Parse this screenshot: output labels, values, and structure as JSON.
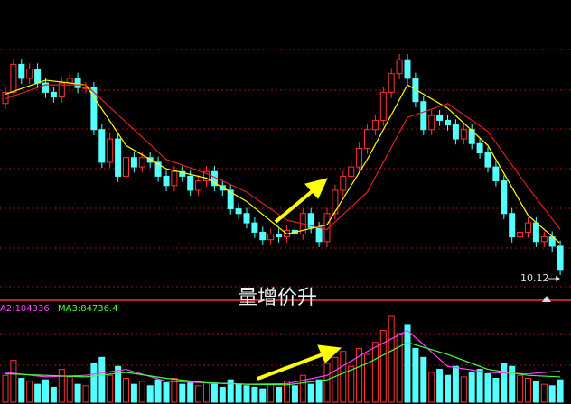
{
  "chart_data": {
    "type": "candlestick",
    "open": [
      11.9,
      12.02,
      12.32,
      12.17,
      12.27,
      12.12,
      12.02,
      11.97,
      12.12,
      12.17,
      12.07,
      12.07,
      11.62,
      11.27,
      11.52,
      11.12,
      11.32,
      11.22,
      11.32,
      11.27,
      11.12,
      11.02,
      11.17,
      11.12,
      10.97,
      11.07,
      11.17,
      11.02,
      10.97,
      10.77,
      10.72,
      10.62,
      10.52,
      10.44,
      10.5,
      10.47,
      10.54,
      10.5,
      10.72,
      10.57,
      10.42,
      10.72,
      10.97,
      11.12,
      11.22,
      11.42,
      11.62,
      11.72,
      12.02,
      12.22,
      12.37,
      12.17,
      11.92,
      11.62,
      11.77,
      11.72,
      11.67,
      11.52,
      11.62,
      11.47,
      11.37,
      11.22,
      11.07,
      10.72,
      10.47,
      10.52,
      10.62,
      10.42,
      10.47,
      10.37
    ],
    "close": [
      12.02,
      12.32,
      12.17,
      12.27,
      12.12,
      12.02,
      11.97,
      12.12,
      12.17,
      12.07,
      12.07,
      11.62,
      11.27,
      11.52,
      11.12,
      11.32,
      11.22,
      11.32,
      11.27,
      11.12,
      11.02,
      11.17,
      11.12,
      10.97,
      11.07,
      11.17,
      11.02,
      10.97,
      10.77,
      10.72,
      10.62,
      10.52,
      10.44,
      10.5,
      10.47,
      10.54,
      10.5,
      10.72,
      10.57,
      10.42,
      10.72,
      10.97,
      11.12,
      11.22,
      11.42,
      11.62,
      11.72,
      12.02,
      12.22,
      12.37,
      12.17,
      11.92,
      11.62,
      11.77,
      11.72,
      11.67,
      11.52,
      11.62,
      11.47,
      11.37,
      11.22,
      11.07,
      10.72,
      10.47,
      10.52,
      10.62,
      10.42,
      10.47,
      10.37,
      10.12
    ],
    "high": [
      12.08,
      12.38,
      12.38,
      12.33,
      12.33,
      12.18,
      12.08,
      12.18,
      12.23,
      12.23,
      12.13,
      12.13,
      11.68,
      11.58,
      11.58,
      11.38,
      11.38,
      11.38,
      11.38,
      11.33,
      11.18,
      11.23,
      11.23,
      11.18,
      11.13,
      11.23,
      11.23,
      11.08,
      11.03,
      10.83,
      10.78,
      10.68,
      10.58,
      10.56,
      10.56,
      10.6,
      10.6,
      10.78,
      10.78,
      10.63,
      10.78,
      11.03,
      11.18,
      11.28,
      11.48,
      11.68,
      11.78,
      12.08,
      12.28,
      12.43,
      12.43,
      12.23,
      11.98,
      11.83,
      11.83,
      11.78,
      11.73,
      11.68,
      11.68,
      11.53,
      11.43,
      11.28,
      11.13,
      10.78,
      10.58,
      10.68,
      10.68,
      10.53,
      10.53,
      10.43
    ],
    "low": [
      11.84,
      11.96,
      12.11,
      12.11,
      12.06,
      11.96,
      11.91,
      11.91,
      12.06,
      12.01,
      12.01,
      11.56,
      11.21,
      11.21,
      11.06,
      11.06,
      11.16,
      11.16,
      11.21,
      11.06,
      10.96,
      10.96,
      11.06,
      10.91,
      10.91,
      11.01,
      10.96,
      10.91,
      10.71,
      10.66,
      10.56,
      10.46,
      10.38,
      10.38,
      10.41,
      10.41,
      10.44,
      10.44,
      10.51,
      10.36,
      10.36,
      10.66,
      10.91,
      11.06,
      11.16,
      11.36,
      11.56,
      11.66,
      11.96,
      12.16,
      12.11,
      11.86,
      11.56,
      11.56,
      11.66,
      11.61,
      11.46,
      11.46,
      11.41,
      11.31,
      11.16,
      11.01,
      10.66,
      10.41,
      10.41,
      10.46,
      10.36,
      10.36,
      10.31,
      10.06
    ],
    "up_color": "#ff3232",
    "down_color": "#54ffff",
    "ma_x": [
      0,
      5,
      10,
      15,
      20,
      25,
      30,
      35,
      40,
      45,
      50,
      55,
      60,
      65,
      69
    ],
    "ma_series": [
      {
        "color": "#ffff00",
        "values": [
          12.0,
          12.15,
          12.1,
          11.45,
          11.2,
          11.1,
          10.85,
          10.5,
          10.6,
          11.3,
          12.1,
          11.85,
          11.45,
          10.7,
          10.4
        ]
      },
      {
        "color": "#e02020",
        "values": [
          11.95,
          12.1,
          12.1,
          11.7,
          11.3,
          11.15,
          10.95,
          10.65,
          10.55,
          10.95,
          11.75,
          11.9,
          11.6,
          11.0,
          10.55
        ]
      }
    ],
    "last_label": "10.12",
    "annotation": "量增价升",
    "volume": [
      90000,
      140000,
      80000,
      70000,
      60000,
      75000,
      50000,
      110000,
      85000,
      60000,
      55000,
      130000,
      150000,
      90000,
      120000,
      80000,
      60000,
      70000,
      55000,
      75000,
      65000,
      80000,
      60000,
      70000,
      55000,
      65000,
      60000,
      50000,
      75000,
      60000,
      55000,
      50000,
      45000,
      60000,
      50000,
      70000,
      55000,
      90000,
      60000,
      75000,
      130000,
      150000,
      170000,
      120000,
      180000,
      160000,
      200000,
      240000,
      290000,
      230000,
      260000,
      180000,
      150000,
      100000,
      110000,
      90000,
      120000,
      85000,
      100000,
      110000,
      95000,
      80000,
      130000,
      120000,
      90000,
      80000,
      70000,
      60000,
      55000,
      75000
    ],
    "volume_ma": [
      {
        "label": "A2:104336",
        "color": "#ff40ff",
        "values": [
          100000,
          85000,
          90000,
          110000,
          70000,
          65000,
          60000,
          62000,
          90000,
          170000,
          240000,
          120000,
          100000,
          95000,
          104336
        ]
      },
      {
        "label": "MA3:84736.4",
        "color": "#40ff40",
        "values": [
          95000,
          90000,
          85000,
          100000,
          80000,
          65000,
          60000,
          58000,
          75000,
          130000,
          200000,
          160000,
          110000,
          90000,
          84736.4
        ]
      }
    ]
  }
}
